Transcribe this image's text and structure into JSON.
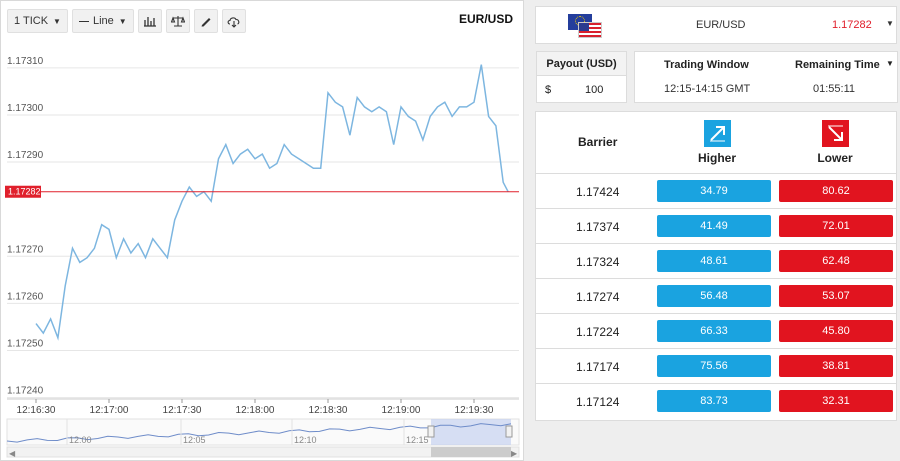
{
  "toolbar": {
    "tick_label": "1 TICK",
    "line_label": "Line"
  },
  "chart": {
    "pair": "EUR/USD",
    "current_price": "1.17282",
    "y_ticks": [
      "1.17310",
      "1.17300",
      "1.17290",
      "1.17270",
      "1.17260",
      "1.17250",
      "1.17240"
    ],
    "x_ticks": [
      "12:16:30",
      "12:17:00",
      "12:17:30",
      "12:18:00",
      "12:18:30",
      "12:19:00",
      "12:19:30"
    ],
    "navigator_ticks": [
      "12:00",
      "12:05",
      "12:10",
      "12:15"
    ],
    "colors": {
      "line": "#7db6e0",
      "current_line": "#e0202c",
      "navigator_fill": "#c6d2f0"
    }
  },
  "chart_data": {
    "type": "line",
    "ylim": [
      1.17238,
      1.17314
    ],
    "x": [
      "12:16:30",
      "12:16:33",
      "12:16:36",
      "12:16:39",
      "12:16:42",
      "12:16:45",
      "12:16:48",
      "12:16:51",
      "12:16:54",
      "12:16:57",
      "12:17:00",
      "12:17:03",
      "12:17:06",
      "12:17:09",
      "12:17:12",
      "12:17:15",
      "12:17:18",
      "12:17:21",
      "12:17:24",
      "12:17:27",
      "12:17:30",
      "12:17:33",
      "12:17:36",
      "12:17:39",
      "12:17:42",
      "12:17:45",
      "12:17:48",
      "12:17:51",
      "12:17:54",
      "12:17:57",
      "12:18:00",
      "12:18:03",
      "12:18:06",
      "12:18:09",
      "12:18:12",
      "12:18:15",
      "12:18:18",
      "12:18:21",
      "12:18:24",
      "12:18:27",
      "12:18:30",
      "12:18:33",
      "12:18:36",
      "12:18:39",
      "12:18:42",
      "12:18:45",
      "12:18:48",
      "12:18:51",
      "12:18:54",
      "12:18:57",
      "12:19:00",
      "12:19:03",
      "12:19:06",
      "12:19:09",
      "12:19:12",
      "12:19:15",
      "12:19:18",
      "12:19:21",
      "12:19:24",
      "12:19:27",
      "12:19:30",
      "12:19:33",
      "12:19:36",
      "12:19:39",
      "12:19:42",
      "12:19:44"
    ],
    "series": [
      {
        "values": [
          1.17254,
          1.17252,
          1.17255,
          1.17251,
          1.17262,
          1.1727,
          1.17267,
          1.17268,
          1.1727,
          1.17275,
          1.17274,
          1.17268,
          1.17272,
          1.17269,
          1.17271,
          1.17268,
          1.17272,
          1.1727,
          1.17268,
          1.17276,
          1.1728,
          1.17283,
          1.17281,
          1.17282,
          1.1728,
          1.17289,
          1.17292,
          1.17288,
          1.1729,
          1.17291,
          1.17289,
          1.1729,
          1.17287,
          1.17288,
          1.17292,
          1.1729,
          1.17289,
          1.17288,
          1.17287,
          1.17287,
          1.17303,
          1.17301,
          1.173,
          1.17294,
          1.17302,
          1.173,
          1.17299,
          1.173,
          1.17299,
          1.17292,
          1.173,
          1.17298,
          1.17297,
          1.17293,
          1.17298,
          1.173,
          1.17301,
          1.17298,
          1.173,
          1.173,
          1.17301,
          1.17309,
          1.17298,
          1.17296,
          1.17284,
          1.17282
        ]
      }
    ]
  },
  "pair_bar": {
    "pair": "EUR/USD",
    "price": "1.17282"
  },
  "payout": {
    "header": "Payout (USD)",
    "currency": "$",
    "amount": "100"
  },
  "window": {
    "trading_label": "Trading Window",
    "trading_value": "12:15-14:15 GMT",
    "remaining_label": "Remaining Time",
    "remaining_value": "01:55:11"
  },
  "table": {
    "barrier_label": "Barrier",
    "higher_label": "Higher",
    "lower_label": "Lower",
    "colors": {
      "higher": "#1aa3e0",
      "lower": "#e1141f"
    },
    "rows": [
      {
        "barrier": "1.17424",
        "higher": "34.79",
        "lower": "80.62"
      },
      {
        "barrier": "1.17374",
        "higher": "41.49",
        "lower": "72.01"
      },
      {
        "barrier": "1.17324",
        "higher": "48.61",
        "lower": "62.48"
      },
      {
        "barrier": "1.17274",
        "higher": "56.48",
        "lower": "53.07"
      },
      {
        "barrier": "1.17224",
        "higher": "66.33",
        "lower": "45.80"
      },
      {
        "barrier": "1.17174",
        "higher": "75.56",
        "lower": "38.81"
      },
      {
        "barrier": "1.17124",
        "higher": "83.73",
        "lower": "32.31"
      }
    ]
  }
}
